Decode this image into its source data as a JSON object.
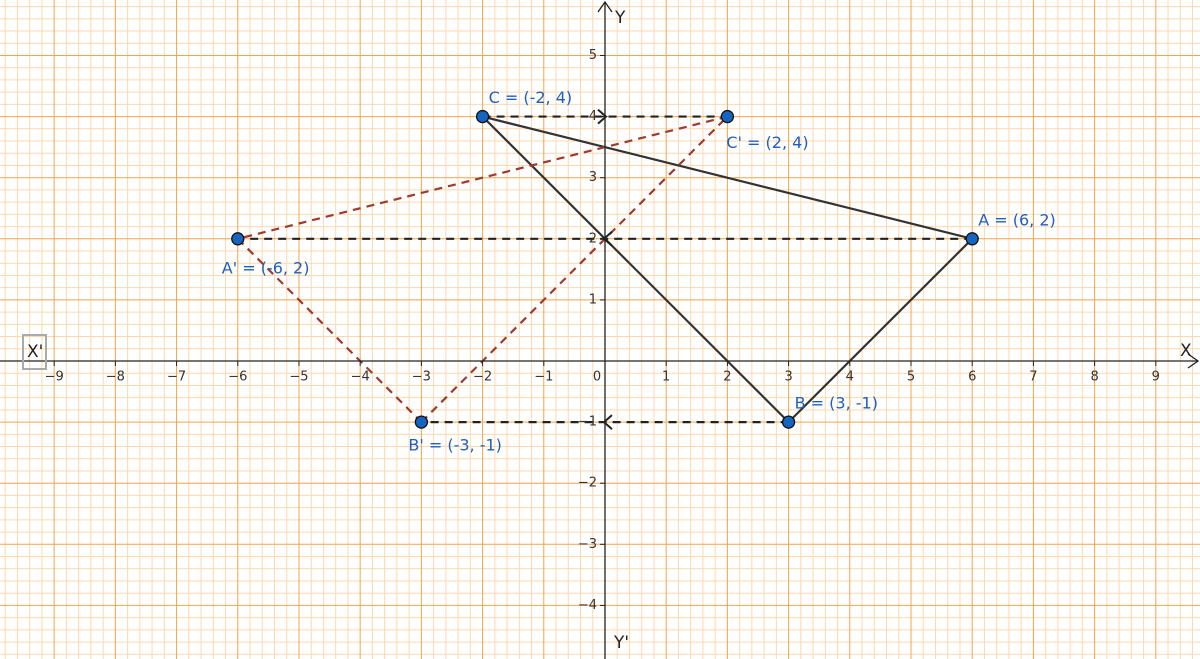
{
  "chart_data": {
    "type": "scatter",
    "xlim": [
      -9.885,
      9.722
    ],
    "ylim": [
      -4.877,
      5.908
    ],
    "xticks": [
      {
        "value": -9,
        "label": "−9"
      },
      {
        "value": -8,
        "label": "−8"
      },
      {
        "value": -7,
        "label": "−7"
      },
      {
        "value": -6,
        "label": "−6"
      },
      {
        "value": -5,
        "label": "−5"
      },
      {
        "value": -4,
        "label": "−4"
      },
      {
        "value": -3,
        "label": "−3"
      },
      {
        "value": -2,
        "label": "−2"
      },
      {
        "value": -1,
        "label": "−1"
      },
      0,
      1,
      2,
      3,
      4,
      5,
      6,
      7,
      8,
      9
    ],
    "yticks": [
      {
        "value": -4,
        "label": "−4"
      },
      {
        "value": -3,
        "label": "−3"
      },
      {
        "value": -2,
        "label": "−2"
      },
      {
        "value": -1,
        "label": "−1"
      },
      1,
      2,
      3,
      4,
      5
    ],
    "x_label": "X",
    "x_label_negative": "X'",
    "y_label": "Y",
    "y_label_negative": "Y'",
    "grid": true,
    "points": [
      {
        "label": "A = (6, 2)",
        "x": 6,
        "y": 2
      },
      {
        "label": "B = (3, -1)",
        "x": 3,
        "y": -1
      },
      {
        "label": "C = (-2, 4)",
        "x": -2,
        "y": 4
      },
      {
        "label": "A' =  (-6, 2)",
        "x": -6,
        "y": 2
      },
      {
        "label": "B' = (-3, -1)",
        "x": -3,
        "y": -1
      },
      {
        "label": "C' =  (2, 4)",
        "x": 2,
        "y": 4
      }
    ],
    "point_color": "#1565c0",
    "original_color": "#333333",
    "image_color": "#a03a2e"
  }
}
